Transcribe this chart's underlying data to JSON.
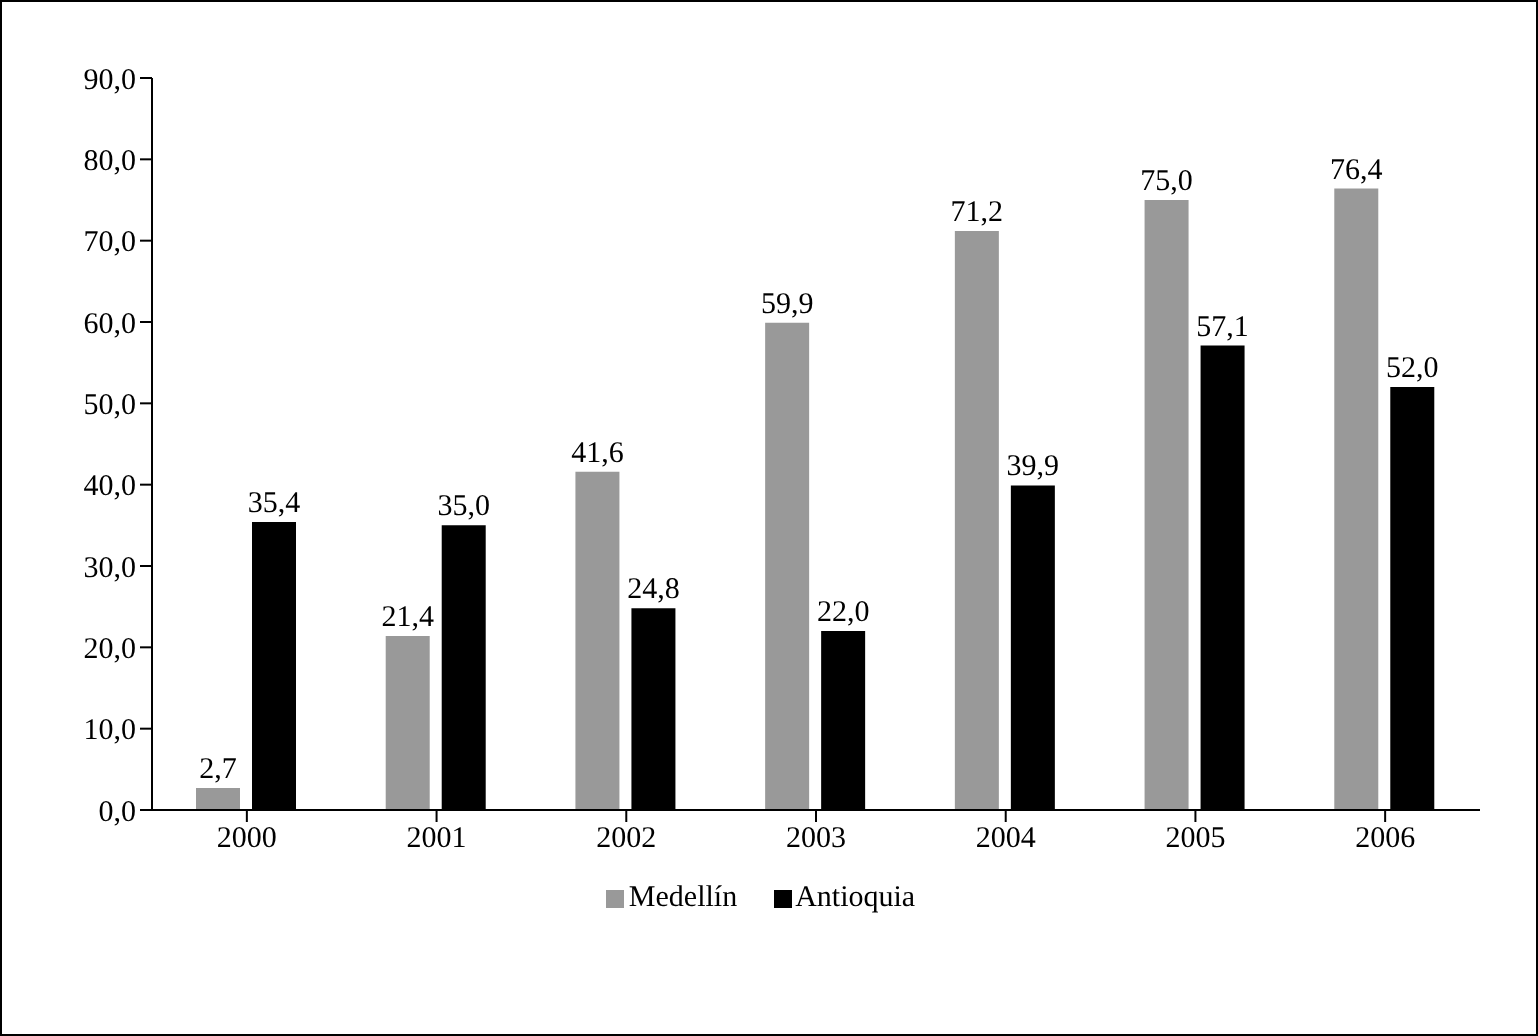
{
  "chart_data": {
    "type": "bar",
    "categories": [
      "2000",
      "2001",
      "2002",
      "2003",
      "2004",
      "2005",
      "2006"
    ],
    "series": [
      {
        "name": "Medellín",
        "color": "#999999",
        "values": [
          2.7,
          21.4,
          41.6,
          59.9,
          71.2,
          75.0,
          76.4
        ],
        "value_labels": [
          "2,7",
          "21,4",
          "41,6",
          "59,9",
          "71,2",
          "75,0",
          "76,4"
        ]
      },
      {
        "name": "Antioquia",
        "color": "#000000",
        "values": [
          35.4,
          35.0,
          24.8,
          22.0,
          39.9,
          57.1,
          52.0
        ],
        "value_labels": [
          "35,4",
          "35,0",
          "24,8",
          "22,0",
          "39,9",
          "57,1",
          "52,0"
        ]
      }
    ],
    "ylim": [
      0,
      90
    ],
    "yticks": [
      {
        "value": 0,
        "label": "0,0"
      },
      {
        "value": 10,
        "label": "10,0"
      },
      {
        "value": 20,
        "label": "20,0"
      },
      {
        "value": 30,
        "label": "30,0"
      },
      {
        "value": 40,
        "label": "40,0"
      },
      {
        "value": 50,
        "label": "50,0"
      },
      {
        "value": 60,
        "label": "60,0"
      },
      {
        "value": 70,
        "label": "70,0"
      },
      {
        "value": 80,
        "label": "80,0"
      },
      {
        "value": 90,
        "label": "90,0"
      }
    ],
    "grid": false,
    "legend": "bottom"
  }
}
